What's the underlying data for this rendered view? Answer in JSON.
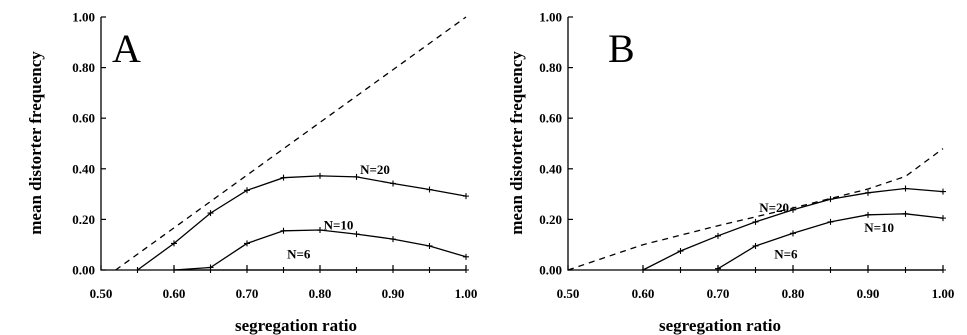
{
  "chart_data": [
    {
      "panel": "A",
      "type": "line",
      "xlabel": "segregation ratio",
      "ylabel": "mean distorter frequency",
      "xlim": [
        0.5,
        1.0
      ],
      "ylim": [
        0.0,
        1.0
      ],
      "x_ticks": [
        "0.50",
        "0.60",
        "0.70",
        "0.80",
        "0.90",
        "1.00"
      ],
      "y_ticks": [
        "0.00",
        "0.20",
        "0.40",
        "0.60",
        "0.80",
        "1.00"
      ],
      "series": [
        {
          "name": "N=20",
          "style": "solid",
          "x": [
            0.55,
            0.6,
            0.65,
            0.7,
            0.75,
            0.8,
            0.85,
            0.9,
            0.95,
            1.0
          ],
          "y": [
            0.0,
            0.105,
            0.225,
            0.315,
            0.365,
            0.372,
            0.368,
            0.342,
            0.318,
            0.292
          ]
        },
        {
          "name": "N=10",
          "style": "solid",
          "x": [
            0.6,
            0.65,
            0.7,
            0.75,
            0.8,
            0.85,
            0.9,
            0.95,
            1.0
          ],
          "y": [
            0.0,
            0.01,
            0.105,
            0.155,
            0.158,
            0.142,
            0.122,
            0.095,
            0.052
          ]
        },
        {
          "name": "N=6",
          "style": "solid",
          "x": [
            0.6,
            0.65,
            0.7,
            0.75,
            0.8,
            0.85,
            0.9,
            0.95,
            1.0
          ],
          "y": [
            0.0,
            0.0,
            0.0,
            0.0,
            0.0,
            0.0,
            0.0,
            0.0,
            0.0
          ]
        },
        {
          "name": "",
          "style": "dashed",
          "x": [
            0.52,
            1.0
          ],
          "y": [
            0.0,
            1.0
          ]
        }
      ],
      "series_labels": [
        {
          "text": "N=20",
          "x": 0.855,
          "y": 0.38
        },
        {
          "text": "N=10",
          "x": 0.805,
          "y": 0.16
        },
        {
          "text": "N=6",
          "x": 0.755,
          "y": 0.045
        }
      ]
    },
    {
      "panel": "B",
      "type": "line",
      "xlabel": "segregation ratio",
      "ylabel": "mean distorter frequency",
      "xlim": [
        0.5,
        1.0
      ],
      "ylim": [
        0.0,
        1.0
      ],
      "x_ticks": [
        "0.50",
        "0.60",
        "0.70",
        "0.80",
        "0.90",
        "1.00"
      ],
      "y_ticks": [
        "0.00",
        "0.20",
        "0.40",
        "0.60",
        "0.80",
        "1.00"
      ],
      "series": [
        {
          "name": "N=20",
          "style": "solid",
          "x": [
            0.6,
            0.65,
            0.7,
            0.75,
            0.8,
            0.85,
            0.9,
            0.95,
            1.0
          ],
          "y": [
            0.0,
            0.075,
            0.135,
            0.19,
            0.238,
            0.28,
            0.305,
            0.322,
            0.31
          ]
        },
        {
          "name": "N=10",
          "style": "solid",
          "x": [
            0.7,
            0.75,
            0.8,
            0.85,
            0.9,
            0.95,
            1.0
          ],
          "y": [
            0.005,
            0.095,
            0.145,
            0.19,
            0.218,
            0.222,
            0.205
          ]
        },
        {
          "name": "N=6",
          "style": "solid",
          "x": [
            0.6,
            0.65,
            0.7,
            0.75,
            0.8,
            0.85,
            0.9,
            0.95,
            1.0
          ],
          "y": [
            0.0,
            0.0,
            0.0,
            0.0,
            0.0,
            0.0,
            0.0,
            0.0,
            0.0
          ]
        },
        {
          "name": "",
          "style": "dashed",
          "x": [
            0.5,
            0.6,
            0.7,
            0.8,
            0.9,
            0.95,
            1.0
          ],
          "y": [
            0.0,
            0.1,
            0.175,
            0.245,
            0.32,
            0.37,
            0.48
          ]
        }
      ],
      "series_labels": [
        {
          "text": "N=20",
          "x": 0.755,
          "y": 0.23
        },
        {
          "text": "N=10",
          "x": 0.895,
          "y": 0.15
        },
        {
          "text": "N=6",
          "x": 0.775,
          "y": 0.045
        }
      ]
    }
  ]
}
